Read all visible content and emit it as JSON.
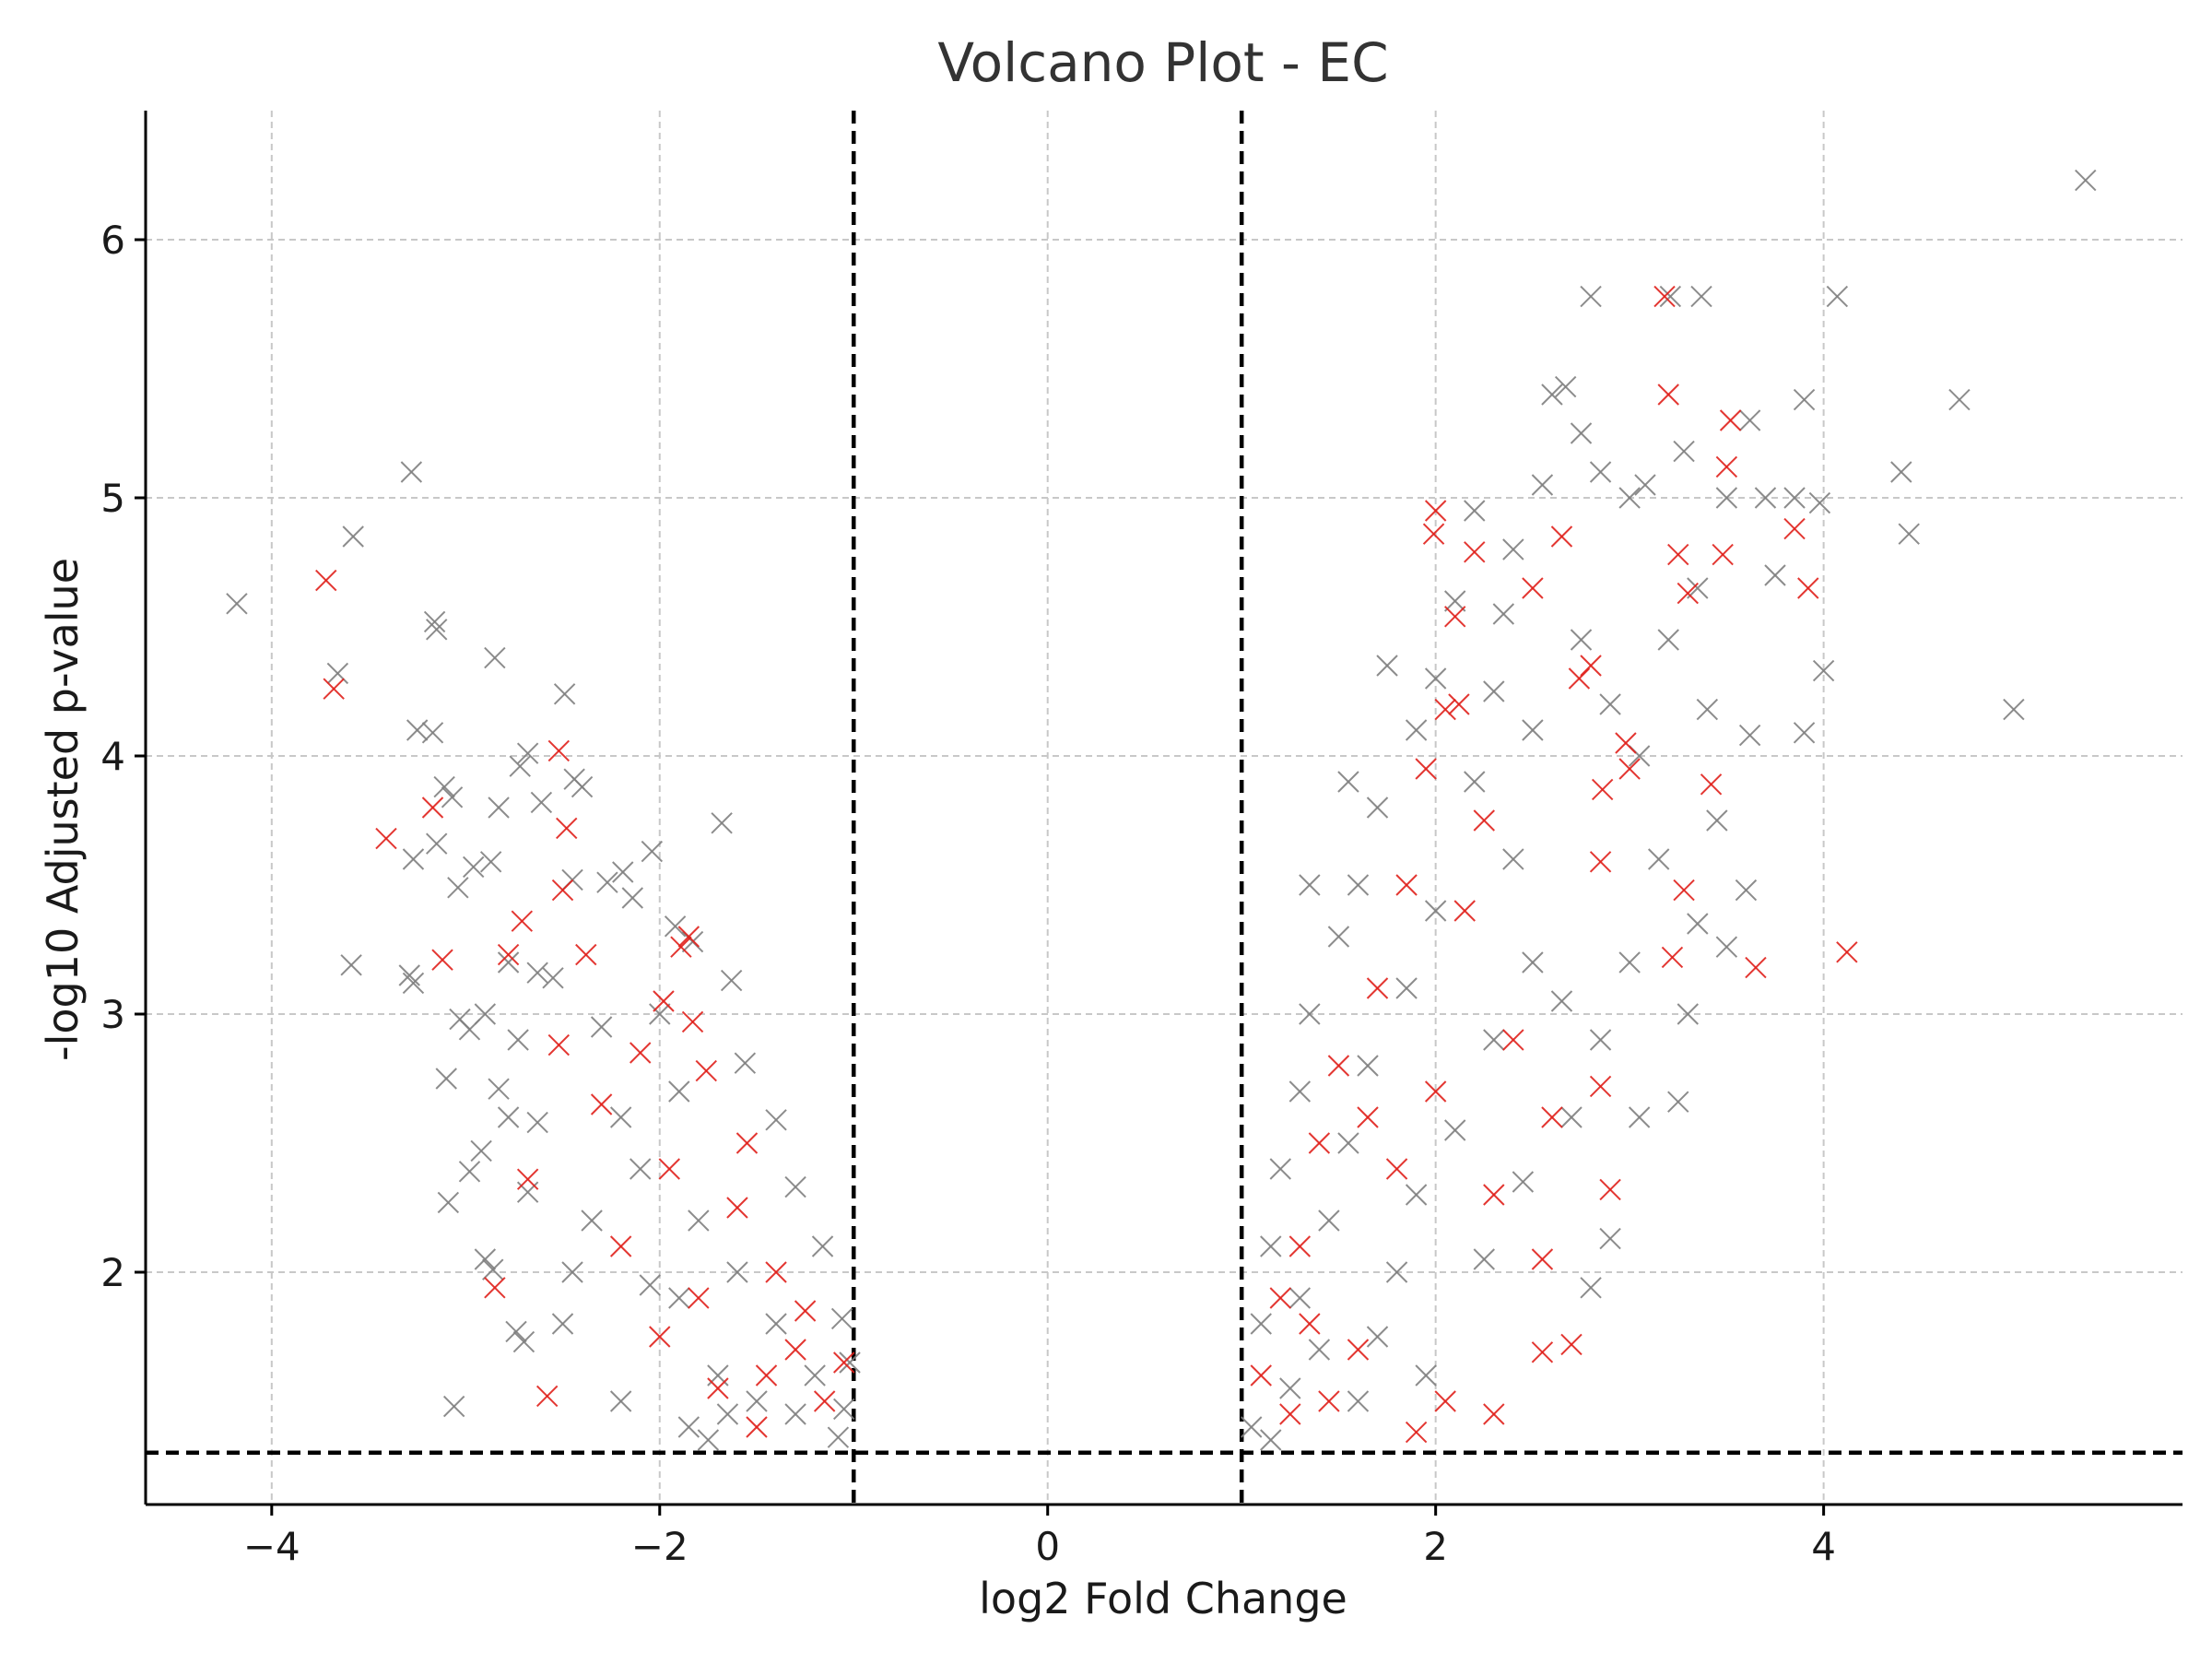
{
  "chart_data": {
    "type": "scatter",
    "title": "Volcano Plot - EC",
    "xlabel": "log2 Fold Change",
    "ylabel": "-log10 Adjusted p-value",
    "xlim": [
      -4.65,
      5.85
    ],
    "ylim": [
      1.1,
      6.5
    ],
    "xticks": [
      -4,
      -2,
      0,
      2,
      4
    ],
    "xtick_labels": [
      "−4",
      "−2",
      "0",
      "2",
      "4"
    ],
    "yticks": [
      2,
      3,
      4,
      5,
      6
    ],
    "ytick_labels": [
      "2",
      "3",
      "4",
      "5",
      "6"
    ],
    "grid": true,
    "thresholds": {
      "fc_lines": [
        -1,
        1
      ],
      "padj_line": 1.301
    },
    "marker": "x",
    "colors": {
      "other": "#808080",
      "highlight": "#e0201b"
    },
    "series": [
      {
        "color": "#808080",
        "points": [
          [
            -4.18,
            4.59
          ],
          [
            -3.58,
            4.85
          ],
          [
            -3.66,
            4.32
          ],
          [
            -3.28,
            5.1
          ],
          [
            -3.16,
            4.52
          ],
          [
            -3.15,
            4.49
          ],
          [
            -2.85,
            4.38
          ],
          [
            -2.49,
            4.24
          ],
          [
            -3.25,
            4.1
          ],
          [
            -3.17,
            4.09
          ],
          [
            -2.68,
            4.01
          ],
          [
            -2.72,
            3.96
          ],
          [
            -2.4,
            3.88
          ],
          [
            -2.44,
            3.91
          ],
          [
            -3.11,
            3.88
          ],
          [
            -3.07,
            3.84
          ],
          [
            -2.83,
            3.8
          ],
          [
            -2.61,
            3.82
          ],
          [
            -1.68,
            3.74
          ],
          [
            -3.27,
            3.6
          ],
          [
            -3.15,
            3.66
          ],
          [
            -2.96,
            3.57
          ],
          [
            -2.87,
            3.59
          ],
          [
            -3.04,
            3.49
          ],
          [
            -2.04,
            3.63
          ],
          [
            -2.19,
            3.55
          ],
          [
            -2.27,
            3.51
          ],
          [
            -2.14,
            3.45
          ],
          [
            -2.45,
            3.52
          ],
          [
            -3.59,
            3.19
          ],
          [
            -3.29,
            3.15
          ],
          [
            -3.27,
            3.12
          ],
          [
            -2.78,
            3.2
          ],
          [
            -2.63,
            3.16
          ],
          [
            -2.55,
            3.14
          ],
          [
            -1.92,
            3.34
          ],
          [
            -1.83,
            3.28
          ],
          [
            -1.63,
            3.13
          ],
          [
            -3.03,
            2.98
          ],
          [
            -2.98,
            2.94
          ],
          [
            -2.9,
            3.0
          ],
          [
            -2.73,
            2.9
          ],
          [
            -3.1,
            2.75
          ],
          [
            -2.83,
            2.71
          ],
          [
            -2.78,
            2.6
          ],
          [
            -2.63,
            2.58
          ],
          [
            -2.92,
            2.47
          ],
          [
            -2.98,
            2.39
          ],
          [
            -3.09,
            2.27
          ],
          [
            -2.68,
            2.31
          ],
          [
            -2.9,
            2.05
          ],
          [
            -2.86,
            2.01
          ],
          [
            -2.7,
            1.73
          ],
          [
            -2.74,
            1.77
          ],
          [
            -3.06,
            1.48
          ],
          [
            -1.56,
            2.81
          ],
          [
            -1.4,
            2.59
          ],
          [
            -1.3,
            2.33
          ],
          [
            -1.16,
            2.1
          ],
          [
            -1.06,
            1.82
          ],
          [
            -1.02,
            1.65
          ],
          [
            -1.05,
            1.47
          ],
          [
            -1.08,
            1.36
          ],
          [
            -2.1,
            2.4
          ],
          [
            -2.2,
            2.6
          ],
          [
            -2.3,
            2.95
          ],
          [
            -2.35,
            2.2
          ],
          [
            -2.45,
            2.0
          ],
          [
            -2.5,
            1.8
          ],
          [
            -2.2,
            1.5
          ],
          [
            -1.9,
            1.9
          ],
          [
            -1.8,
            2.2
          ],
          [
            -1.7,
            1.6
          ],
          [
            -1.6,
            2.0
          ],
          [
            -1.5,
            1.5
          ],
          [
            -1.4,
            1.8
          ],
          [
            -1.3,
            1.45
          ],
          [
            -1.2,
            1.6
          ],
          [
            -1.9,
            2.7
          ],
          [
            -2.0,
            3.0
          ],
          [
            -1.85,
            1.4
          ],
          [
            -1.75,
            1.35
          ],
          [
            -1.65,
            1.45
          ],
          [
            -2.05,
            1.95
          ],
          [
            1.05,
            1.4
          ],
          [
            1.1,
            1.8
          ],
          [
            1.15,
            2.1
          ],
          [
            1.2,
            2.4
          ],
          [
            1.3,
            2.7
          ],
          [
            1.35,
            3.0
          ],
          [
            1.5,
            3.3
          ],
          [
            1.6,
            3.5
          ],
          [
            1.7,
            3.8
          ],
          [
            1.75,
            4.35
          ],
          [
            1.9,
            4.1
          ],
          [
            2.0,
            4.3
          ],
          [
            2.1,
            4.6
          ],
          [
            2.2,
            4.95
          ],
          [
            2.35,
            4.55
          ],
          [
            2.4,
            4.8
          ],
          [
            2.55,
            5.05
          ],
          [
            2.6,
            5.4
          ],
          [
            2.67,
            5.43
          ],
          [
            2.75,
            5.25
          ],
          [
            2.85,
            5.1
          ],
          [
            2.8,
            5.78
          ],
          [
            3.0,
            5.0
          ],
          [
            3.08,
            5.05
          ],
          [
            3.28,
            5.18
          ],
          [
            3.21,
            5.78
          ],
          [
            3.37,
            5.78
          ],
          [
            3.5,
            5.0
          ],
          [
            3.62,
            5.3
          ],
          [
            3.7,
            5.0
          ],
          [
            3.75,
            4.7
          ],
          [
            3.85,
            5.0
          ],
          [
            3.9,
            5.38
          ],
          [
            3.98,
            4.98
          ],
          [
            4.07,
            5.78
          ],
          [
            4.4,
            5.1
          ],
          [
            4.44,
            4.86
          ],
          [
            4.7,
            5.38
          ],
          [
            5.35,
            6.23
          ],
          [
            4.98,
            4.18
          ],
          [
            4.0,
            4.33
          ],
          [
            3.9,
            4.09
          ],
          [
            3.62,
            4.08
          ],
          [
            3.6,
            3.48
          ],
          [
            3.5,
            3.26
          ],
          [
            3.35,
            3.35
          ],
          [
            3.3,
            3.0
          ],
          [
            3.25,
            2.66
          ],
          [
            3.05,
            2.6
          ],
          [
            2.9,
            2.13
          ],
          [
            2.8,
            1.94
          ],
          [
            3.4,
            4.18
          ],
          [
            3.45,
            3.75
          ],
          [
            2.2,
            3.9
          ],
          [
            2.4,
            3.6
          ],
          [
            2.5,
            3.2
          ],
          [
            2.65,
            3.05
          ],
          [
            2.3,
            2.9
          ],
          [
            2.1,
            2.55
          ],
          [
            1.9,
            2.3
          ],
          [
            1.8,
            2.0
          ],
          [
            1.7,
            1.75
          ],
          [
            1.6,
            1.5
          ],
          [
            1.4,
            1.7
          ],
          [
            1.3,
            1.9
          ],
          [
            1.25,
            1.55
          ],
          [
            1.45,
            2.2
          ],
          [
            1.55,
            2.5
          ],
          [
            1.65,
            2.8
          ],
          [
            1.85,
            3.1
          ],
          [
            2.0,
            3.4
          ],
          [
            1.15,
            1.35
          ],
          [
            1.95,
            1.6
          ],
          [
            2.25,
            2.05
          ],
          [
            2.45,
            2.35
          ],
          [
            2.7,
            2.6
          ],
          [
            2.85,
            2.9
          ],
          [
            3.0,
            3.2
          ],
          [
            3.15,
            3.6
          ],
          [
            3.05,
            4.0
          ],
          [
            2.9,
            4.2
          ],
          [
            2.75,
            4.45
          ],
          [
            3.2,
            4.45
          ],
          [
            3.35,
            4.65
          ],
          [
            2.5,
            4.1
          ],
          [
            2.3,
            4.25
          ],
          [
            1.55,
            3.9
          ],
          [
            1.35,
            3.5
          ]
        ]
      },
      {
        "color": "#e0201b",
        "points": [
          [
            -3.72,
            4.68
          ],
          [
            -3.68,
            4.26
          ],
          [
            -2.52,
            4.02
          ],
          [
            -3.17,
            3.8
          ],
          [
            -2.48,
            3.72
          ],
          [
            -3.41,
            3.68
          ],
          [
            -2.5,
            3.48
          ],
          [
            -2.71,
            3.36
          ],
          [
            -1.85,
            3.3
          ],
          [
            -1.89,
            3.26
          ],
          [
            -3.12,
            3.21
          ],
          [
            -2.78,
            3.23
          ],
          [
            -2.38,
            3.23
          ],
          [
            -1.98,
            3.05
          ],
          [
            -1.83,
            2.97
          ],
          [
            -1.76,
            2.78
          ],
          [
            -2.52,
            2.88
          ],
          [
            -2.68,
            2.36
          ],
          [
            -2.58,
            1.52
          ],
          [
            -2.85,
            1.94
          ],
          [
            -2.2,
            2.1
          ],
          [
            -1.95,
            2.4
          ],
          [
            -1.6,
            2.25
          ],
          [
            -1.4,
            2.0
          ],
          [
            -1.3,
            1.7
          ],
          [
            -1.15,
            1.5
          ],
          [
            -1.5,
            1.4
          ],
          [
            -1.7,
            1.55
          ],
          [
            -2.0,
            1.75
          ],
          [
            -2.3,
            2.65
          ],
          [
            -1.8,
            1.9
          ],
          [
            -1.05,
            1.65
          ],
          [
            -1.55,
            2.5
          ],
          [
            -2.1,
            2.85
          ],
          [
            -1.25,
            1.85
          ],
          [
            -1.45,
            1.6
          ],
          [
            2.0,
            4.95
          ],
          [
            1.99,
            4.86
          ],
          [
            2.5,
            4.65
          ],
          [
            2.65,
            4.85
          ],
          [
            2.98,
            4.05
          ],
          [
            2.86,
            3.87
          ],
          [
            3.0,
            3.95
          ],
          [
            3.18,
            5.78
          ],
          [
            3.25,
            4.78
          ],
          [
            3.52,
            5.3
          ],
          [
            3.5,
            5.12
          ],
          [
            3.48,
            4.78
          ],
          [
            3.2,
            5.4
          ],
          [
            3.85,
            4.88
          ],
          [
            3.92,
            4.65
          ],
          [
            4.12,
            3.24
          ],
          [
            3.65,
            3.18
          ],
          [
            3.42,
            3.89
          ],
          [
            3.3,
            4.63
          ],
          [
            3.28,
            3.48
          ],
          [
            3.22,
            3.22
          ],
          [
            2.85,
            3.59
          ],
          [
            2.8,
            4.35
          ],
          [
            2.74,
            4.3
          ],
          [
            2.2,
            4.79
          ],
          [
            2.1,
            4.54
          ],
          [
            2.12,
            4.2
          ],
          [
            2.05,
            4.18
          ],
          [
            1.95,
            3.95
          ],
          [
            2.25,
            3.75
          ],
          [
            1.85,
            3.5
          ],
          [
            1.7,
            3.1
          ],
          [
            1.5,
            2.8
          ],
          [
            1.4,
            2.5
          ],
          [
            1.3,
            2.1
          ],
          [
            1.2,
            1.9
          ],
          [
            1.1,
            1.6
          ],
          [
            1.25,
            1.45
          ],
          [
            1.6,
            1.7
          ],
          [
            1.8,
            2.4
          ],
          [
            2.0,
            2.7
          ],
          [
            2.3,
            2.3
          ],
          [
            2.55,
            2.05
          ],
          [
            2.7,
            1.72
          ],
          [
            2.9,
            2.32
          ],
          [
            2.85,
            2.72
          ],
          [
            2.55,
            1.69
          ],
          [
            2.3,
            1.45
          ],
          [
            2.05,
            1.5
          ],
          [
            1.9,
            1.38
          ],
          [
            1.45,
            1.5
          ],
          [
            1.35,
            1.8
          ],
          [
            1.65,
            2.6
          ],
          [
            2.15,
            3.4
          ],
          [
            2.4,
            2.9
          ],
          [
            2.6,
            2.6
          ]
        ]
      }
    ]
  }
}
